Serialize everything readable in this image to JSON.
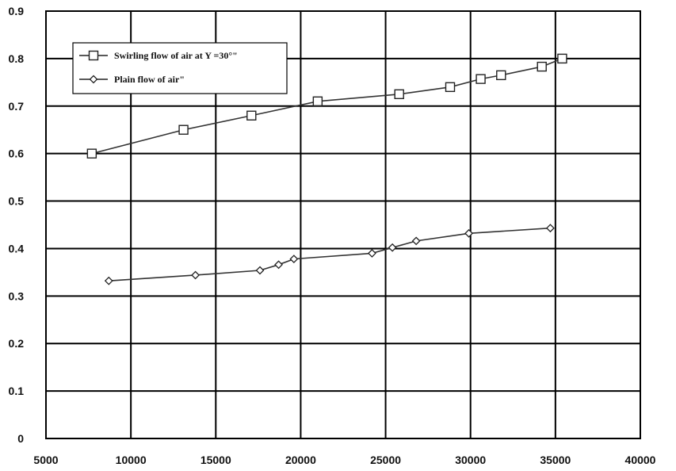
{
  "chart_data": {
    "type": "line",
    "title": "",
    "xlabel": "",
    "ylabel": "",
    "xlim": [
      5000,
      40000
    ],
    "ylim": [
      0,
      0.9
    ],
    "x_ticks": [
      "5000",
      "10000",
      "15000",
      "20000",
      "25000",
      "30000",
      "35000",
      "40000"
    ],
    "y_ticks": [
      "0",
      "0.1",
      "0.2",
      "0.3",
      "0.4",
      "0.5",
      "0.6",
      "0.7",
      "0.8",
      "0.9"
    ],
    "grid": true,
    "legend_position": "top-left",
    "series": [
      {
        "name": "Swirling flow of air at Y =30°\"",
        "marker": "square",
        "color": "#333333",
        "x": [
          7700,
          13100,
          17100,
          21000,
          25800,
          28800,
          30600,
          31800,
          34200,
          35400
        ],
        "y": [
          0.6,
          0.65,
          0.68,
          0.71,
          0.725,
          0.74,
          0.757,
          0.765,
          0.783,
          0.8
        ]
      },
      {
        "name": "Plain flow of air\"",
        "marker": "diamond",
        "color": "#333333",
        "x": [
          8700,
          13800,
          17600,
          18700,
          19600,
          24200,
          25400,
          26800,
          29900,
          34700
        ],
        "y": [
          0.332,
          0.344,
          0.354,
          0.366,
          0.378,
          0.39,
          0.402,
          0.416,
          0.432,
          0.443
        ]
      }
    ]
  }
}
